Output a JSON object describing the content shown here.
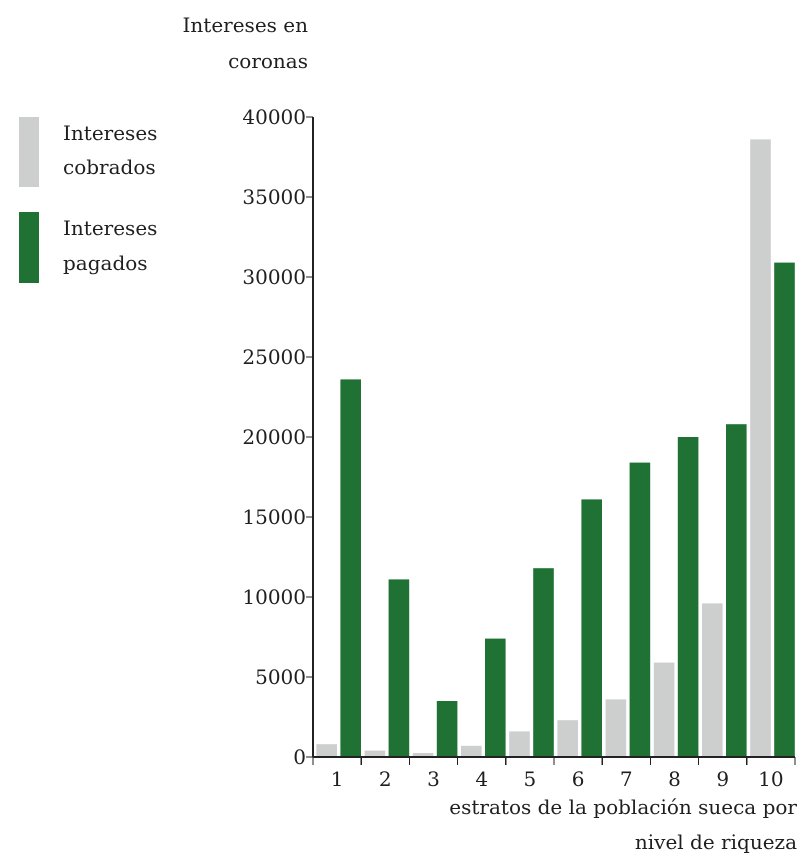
{
  "chart_data": {
    "type": "bar",
    "categories": [
      "1",
      "2",
      "3",
      "4",
      "5",
      "6",
      "7",
      "8",
      "9",
      "10"
    ],
    "series": [
      {
        "name": "Intereses cobrados",
        "color": "#cccfce",
        "values": [
          800,
          400,
          250,
          700,
          1600,
          2300,
          3600,
          5900,
          9600,
          38600
        ]
      },
      {
        "name": "Intereses pagados",
        "color": "#1f7234",
        "values": [
          23600,
          11100,
          3500,
          7400,
          11800,
          16100,
          18400,
          20000,
          20800,
          30900
        ]
      }
    ],
    "ylabel_line1": "Intereses en",
    "ylabel_line2": "coronas",
    "xlabel_line1": "estratos de la población sueca por",
    "xlabel_line2": "nivel de riqueza",
    "legend_item_1_line1": "Intereses",
    "legend_item_1_line2": "cobrados",
    "legend_item_2_line1": "Intereses",
    "legend_item_2_line2": "pagados",
    "legend_placement": "left",
    "ylim": [
      0,
      40000
    ],
    "yticks": [
      0,
      5000,
      10000,
      15000,
      20000,
      25000,
      30000,
      35000,
      40000
    ],
    "grid": false
  }
}
